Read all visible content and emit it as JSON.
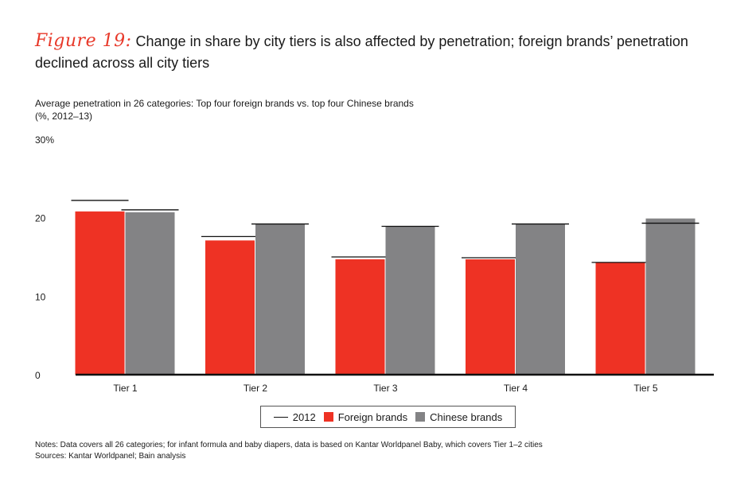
{
  "header": {
    "figure_label": "Figure 19:",
    "title": "Change in share by city tiers is also affected by penetration; foreign brands’ penetration declined across all city tiers",
    "subtitle_line1": "Average penetration in 26 categories: Top four foreign brands vs. top four Chinese brands",
    "subtitle_line2": "(%, 2012–13)"
  },
  "colors": {
    "foreign": "#ee3224",
    "chinese": "#838385",
    "line_2012": "#111111"
  },
  "chart_data": {
    "type": "bar",
    "categories": [
      "Tier 1",
      "Tier 2",
      "Tier 3",
      "Tier 4",
      "Tier 5"
    ],
    "series": [
      {
        "name": "Foreign brands",
        "values": [
          20.8,
          17.1,
          14.7,
          14.7,
          14.3
        ]
      },
      {
        "name": "Chinese brands",
        "values": [
          20.7,
          19.2,
          18.9,
          19.2,
          19.9
        ]
      }
    ],
    "markers_2012": {
      "name": "2012",
      "foreign": [
        22.2,
        17.6,
        15.0,
        14.9,
        14.3
      ],
      "chinese": [
        21.0,
        19.2,
        18.9,
        19.2,
        19.3
      ]
    },
    "yticks": [
      {
        "value": 0,
        "label": "0"
      },
      {
        "value": 10,
        "label": "10"
      },
      {
        "value": 20,
        "label": "20"
      },
      {
        "value": 30,
        "label": "30%"
      }
    ],
    "ylim": [
      0,
      30
    ],
    "grid": false,
    "legend_position": "bottom"
  },
  "legend": {
    "line": "2012",
    "foreign": "Foreign brands",
    "chinese": "Chinese brands"
  },
  "notes": {
    "line1": "Notes: Data covers all 26 categories; for infant formula and baby diapers, data is based on Kantar Worldpanel Baby, which covers Tier 1–2 cities",
    "line2": "Sources: Kantar Worldpanel; Bain analysis"
  }
}
